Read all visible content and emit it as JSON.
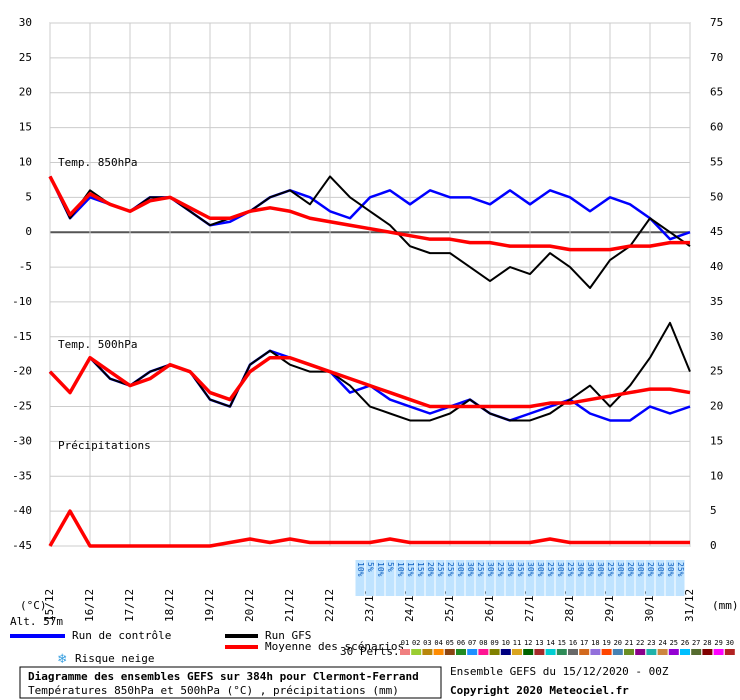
{
  "chart_data": {
    "type": "line",
    "title": "Diagramme des ensembles GEFS sur 384h pour Clermont-Ferrand",
    "subtitle": "Températures 850hPa et 500hPa (°C) , précipitations (mm)",
    "panel_labels": [
      "Temp. 850hPa",
      "Temp. 500hPa",
      "Précipitations"
    ],
    "y_label": "(°C)",
    "y2_label": "(mm)",
    "altitude": "Alt. 57m",
    "run_info": "Ensemble GEFS du 15/12/2020 - 00Z",
    "copyright": "Copyright 2020 Meteociel.fr",
    "members_label": "30 Perts.",
    "xlim": [
      0,
      384
    ],
    "xticks": [
      {
        "value": 0,
        "label": "15/12"
      },
      {
        "value": 24,
        "label": "16/12"
      },
      {
        "value": 48,
        "label": "17/12"
      },
      {
        "value": 72,
        "label": "18/12"
      },
      {
        "value": 96,
        "label": "19/12"
      },
      {
        "value": 120,
        "label": "20/12"
      },
      {
        "value": 144,
        "label": "21/12"
      },
      {
        "value": 168,
        "label": "22/12"
      },
      {
        "value": 192,
        "label": "23/12"
      },
      {
        "value": 216,
        "label": "24/12"
      },
      {
        "value": 240,
        "label": "25/12"
      },
      {
        "value": 264,
        "label": "26/12"
      },
      {
        "value": 288,
        "label": "27/12"
      },
      {
        "value": 312,
        "label": "28/12"
      },
      {
        "value": 336,
        "label": "29/12"
      },
      {
        "value": 360,
        "label": "30/12"
      },
      {
        "value": 384,
        "label": "31/12"
      }
    ],
    "ylim": [
      -45,
      30
    ],
    "yticks": [
      30,
      25,
      20,
      15,
      10,
      5,
      0,
      -5,
      -10,
      -15,
      -20,
      -25,
      -30,
      -35,
      -40,
      -45
    ],
    "y2lim": [
      0,
      75
    ],
    "y2ticks": [
      75,
      70,
      65,
      60,
      55,
      50,
      45,
      40,
      35,
      30,
      25,
      20,
      15,
      10,
      5,
      0
    ],
    "grid": true,
    "x": [
      0,
      12,
      24,
      36,
      48,
      60,
      72,
      84,
      96,
      108,
      120,
      132,
      144,
      156,
      168,
      180,
      192,
      204,
      216,
      228,
      240,
      252,
      264,
      276,
      288,
      300,
      312,
      324,
      336,
      348,
      360,
      372,
      384
    ],
    "series": [
      {
        "name": "Run de contrôle",
        "color": "#0000ff",
        "values": [
          8,
          2,
          5,
          4,
          3,
          5,
          5,
          3,
          1,
          1.5,
          3,
          5,
          6,
          5,
          3,
          2,
          5,
          6,
          4,
          6,
          5,
          5,
          4,
          6,
          4,
          6,
          5,
          3,
          5,
          4,
          2,
          -1,
          0
        ]
      },
      {
        "name": "Run GFS",
        "color": "#000000",
        "values": [
          8,
          2,
          6,
          4,
          3,
          5,
          5,
          3,
          1,
          2,
          3,
          5,
          6,
          4,
          8,
          5,
          3,
          1,
          -2,
          -3,
          -3,
          -5,
          -7,
          -5,
          -6,
          -3,
          -5,
          -8,
          -4,
          -2,
          2,
          0,
          -2
        ]
      },
      {
        "name": "Moyenne des scénarios",
        "color": "#ff0000",
        "values": [
          8,
          2.5,
          5.5,
          4,
          3,
          4.5,
          5,
          3.5,
          2,
          2,
          3,
          3.5,
          3,
          2,
          1.5,
          1,
          0.5,
          0,
          -0.5,
          -1,
          -1,
          -1.5,
          -1.5,
          -2,
          -2,
          -2,
          -2.5,
          -2.5,
          -2.5,
          -2,
          -2,
          -1.5,
          -1.5
        ]
      },
      {
        "name": "Run de contrôle",
        "color": "#0000ff",
        "values": [
          -20,
          -23,
          -18,
          -21,
          -22,
          -20,
          -19,
          -20,
          -24,
          -25,
          -19,
          -17,
          -18,
          -19,
          -20,
          -23,
          -22,
          -24,
          -25,
          -26,
          -25,
          -24,
          -26,
          -27,
          -26,
          -25,
          -24,
          -26,
          -27,
          -27,
          -25,
          -26,
          -25
        ]
      },
      {
        "name": "Run GFS",
        "color": "#000000",
        "values": [
          -20,
          -23,
          -18,
          -21,
          -22,
          -20,
          -19,
          -20,
          -24,
          -25,
          -19,
          -17,
          -19,
          -20,
          -20,
          -22,
          -25,
          -26,
          -27,
          -27,
          -26,
          -24,
          -26,
          -27,
          -27,
          -26,
          -24,
          -22,
          -25,
          -22,
          -18,
          -13,
          -20
        ]
      },
      {
        "name": "Moyenne des scénarios",
        "color": "#ff0000",
        "values": [
          -20,
          -23,
          -18,
          -20,
          -22,
          -21,
          -19,
          -20,
          -23,
          -24,
          -20,
          -18,
          -18,
          -19,
          -20,
          -21,
          -22,
          -23,
          -24,
          -25,
          -25,
          -25,
          -25,
          -25,
          -25,
          -24.5,
          -24.5,
          -24,
          -23.5,
          -23,
          -22.5,
          -22.5,
          -23
        ]
      },
      {
        "name": "Moyenne des scénarios",
        "color": "#ff0000",
        "axis": "y2",
        "values": [
          0,
          5,
          0,
          0,
          0,
          0,
          0,
          0,
          0,
          0.5,
          1,
          0.5,
          1,
          0.5,
          0.5,
          0.5,
          0.5,
          1,
          0.5,
          0.5,
          0.5,
          0.5,
          0.5,
          0.5,
          0.5,
          1,
          0.5,
          0.5,
          0.5,
          0.5,
          0.5,
          0.5,
          0.5
        ]
      }
    ],
    "snow": {
      "name": "Risque neige",
      "x": [
        186,
        192,
        198,
        204,
        210,
        216,
        222,
        228,
        234,
        240,
        246,
        252,
        258,
        264,
        270,
        276,
        282,
        288,
        294,
        300,
        306,
        312,
        318,
        324,
        330,
        336,
        342,
        348,
        354,
        360,
        366,
        372,
        378
      ],
      "values": [
        10,
        5,
        10,
        5,
        10,
        15,
        15,
        20,
        25,
        25,
        30,
        30,
        25,
        30,
        25,
        30,
        35,
        30,
        30,
        25,
        30,
        25,
        30,
        30,
        30,
        25,
        30,
        20,
        30,
        20,
        30,
        30,
        25
      ],
      "value_labels": [
        "10%",
        "5%",
        "10%",
        "5%",
        "10%",
        "15%",
        "15%",
        "20%",
        "25%",
        "25%",
        "30%",
        "30%",
        "25%",
        "30%",
        "25%",
        "30%",
        "35%",
        "30%",
        "30%",
        "25%",
        "30%",
        "25%",
        "30%",
        "30%",
        "30%",
        "25%",
        "30%",
        "20%",
        "30%",
        "20%",
        "30%",
        "30%",
        "25%"
      ]
    },
    "members": [
      {
        "name": "01",
        "color": "#f08080"
      },
      {
        "name": "02",
        "color": "#9acd32"
      },
      {
        "name": "03",
        "color": "#b8860b"
      },
      {
        "name": "04",
        "color": "#ff8c00"
      },
      {
        "name": "05",
        "color": "#8b4513"
      },
      {
        "name": "06",
        "color": "#228b22"
      },
      {
        "name": "07",
        "color": "#1e90ff"
      },
      {
        "name": "08",
        "color": "#ff1493"
      },
      {
        "name": "09",
        "color": "#808000"
      },
      {
        "name": "10",
        "color": "#000080"
      },
      {
        "name": "11",
        "color": "#daa520"
      },
      {
        "name": "12",
        "color": "#006400"
      },
      {
        "name": "13",
        "color": "#a52a2a"
      },
      {
        "name": "14",
        "color": "#00ced1"
      },
      {
        "name": "15",
        "color": "#2e8b57"
      },
      {
        "name": "16",
        "color": "#696969"
      },
      {
        "name": "17",
        "color": "#d2691e"
      },
      {
        "name": "18",
        "color": "#9370db"
      },
      {
        "name": "19",
        "color": "#ff4500"
      },
      {
        "name": "20",
        "color": "#4682b4"
      },
      {
        "name": "21",
        "color": "#6b8e23"
      },
      {
        "name": "22",
        "color": "#8b008b"
      },
      {
        "name": "23",
        "color": "#20b2aa"
      },
      {
        "name": "24",
        "color": "#cd853f"
      },
      {
        "name": "25",
        "color": "#9400d3"
      },
      {
        "name": "26",
        "color": "#00bfff"
      },
      {
        "name": "27",
        "color": "#556b2f"
      },
      {
        "name": "28",
        "color": "#800000"
      },
      {
        "name": "29",
        "color": "#ff00ff"
      },
      {
        "name": "30",
        "color": "#b22222"
      }
    ]
  }
}
